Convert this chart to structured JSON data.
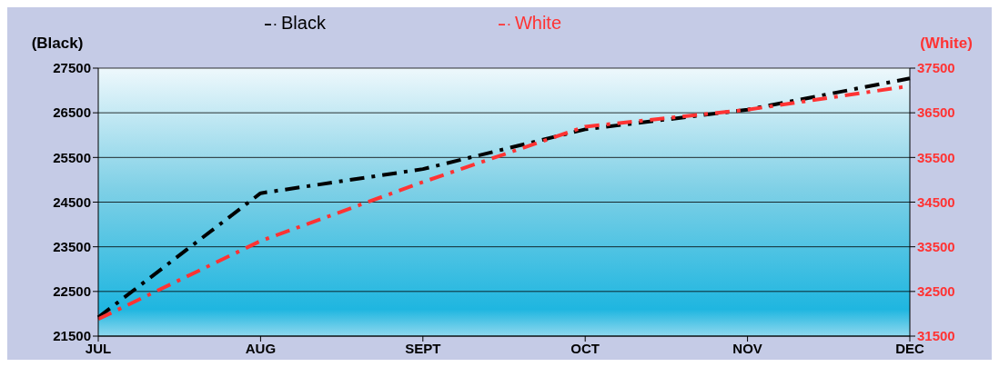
{
  "chart_data": {
    "type": "line",
    "categories": [
      "JUL",
      "AUG",
      "SEPT",
      "OCT",
      "NOV",
      "DEC"
    ],
    "ylabel": "(Black)",
    "y2label": "(White)",
    "series": [
      {
        "name": "Black",
        "color": "#000000",
        "values": [
          21920,
          24700,
          25240,
          26130,
          26570,
          27270
        ]
      },
      {
        "name": "White",
        "color": "#ff3333",
        "axis": "y2",
        "values": [
          31880,
          33630,
          34950,
          36190,
          36570,
          37100
        ]
      }
    ],
    "ylim": [
      21500,
      27500
    ],
    "yticks": [
      21500,
      22500,
      23500,
      24500,
      25500,
      26500,
      27500
    ],
    "y2lim": [
      31500,
      37500
    ],
    "y2ticks": [
      31500,
      32500,
      33500,
      34500,
      35500,
      36500,
      37500
    ],
    "grid": "y",
    "legend": "top",
    "marker": "none",
    "line_style": "dashed"
  }
}
